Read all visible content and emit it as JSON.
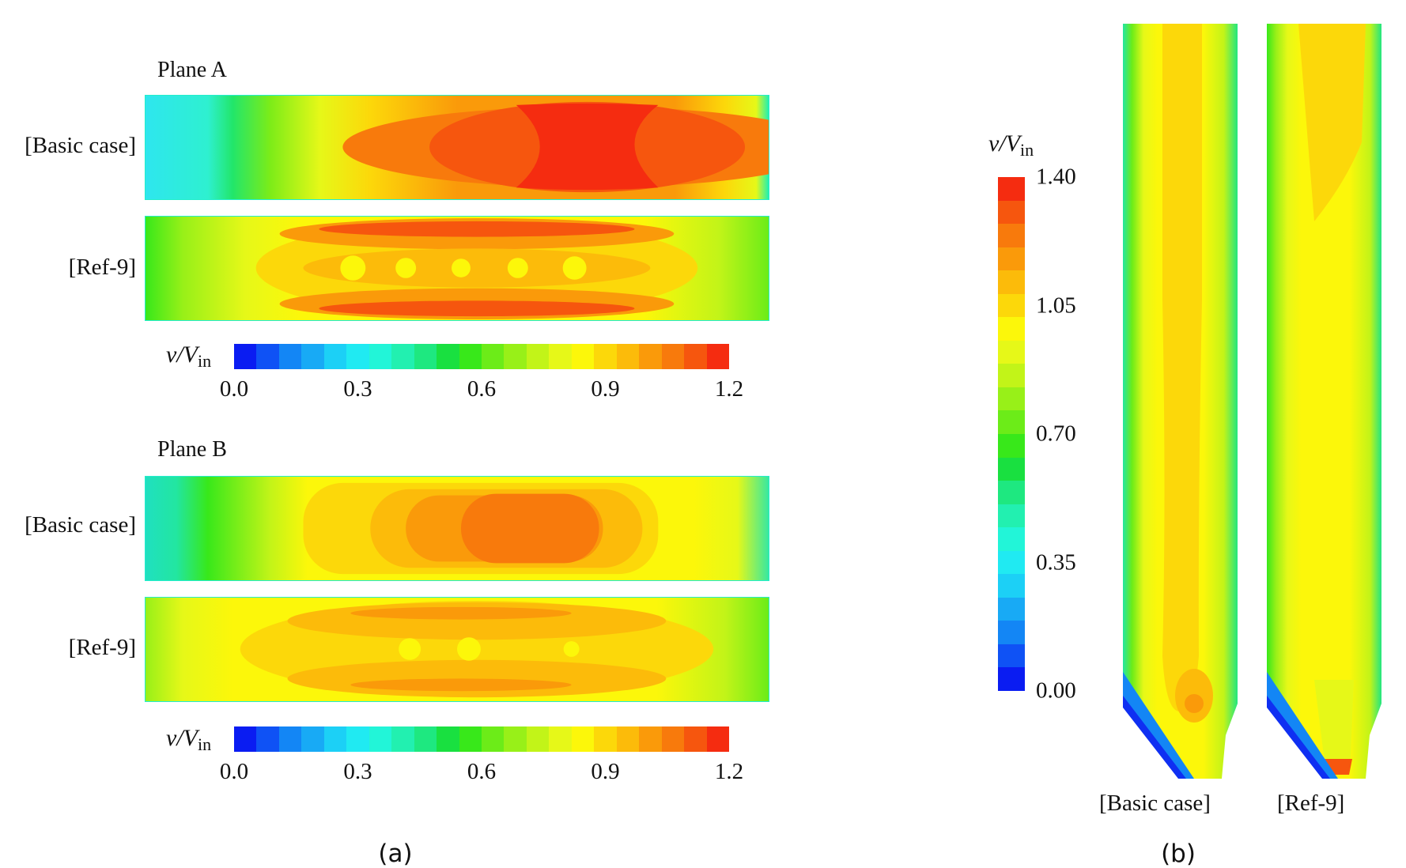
{
  "figure_a": {
    "caption": "(a)",
    "plane_a": {
      "title": "Plane A",
      "rows": [
        "[Basic case]",
        "[Ref-9]"
      ]
    },
    "plane_b": {
      "title": "Plane B",
      "rows": [
        "[Basic case]",
        "[Ref-9]"
      ]
    },
    "colorbar": {
      "label_main": "v/V",
      "label_sub": "in",
      "ticks": [
        "0.0",
        "0.3",
        "0.6",
        "0.9",
        "1.2"
      ],
      "min": 0.0,
      "max": 1.2
    }
  },
  "figure_b": {
    "caption": "(b)",
    "colorbar": {
      "label_main": "v/V",
      "label_sub": "in",
      "ticks": [
        "1.40",
        "1.05",
        "0.70",
        "0.35",
        "0.00"
      ],
      "min": 0.0,
      "max": 1.4
    },
    "columns": [
      "[Basic case]",
      "[Ref-9]"
    ]
  },
  "colors": {
    "scale": [
      "#0a1cf2",
      "#0f52f5",
      "#1386f5",
      "#18aaf5",
      "#1cd0f6",
      "#20eaf2",
      "#22f5d8",
      "#22f0b0",
      "#1ee880",
      "#19e040",
      "#38e81a",
      "#6cec18",
      "#98f018",
      "#c2f418",
      "#e6f818",
      "#fcf70a",
      "#fcd80a",
      "#fcbb0a",
      "#fa9a0a",
      "#f87a0c",
      "#f6560e",
      "#f52c10"
    ],
    "panel_border": "#22ddcc"
  }
}
